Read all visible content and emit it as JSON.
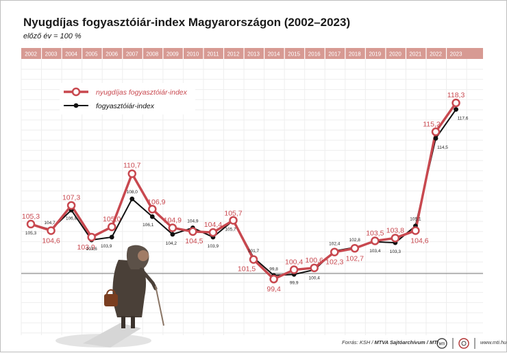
{
  "title": "Nyugdíjas fogyasztóiár-index Magyarországon (2002–2023)",
  "subtitle": "előző év = 100 %",
  "colors": {
    "pensioner": "#c8484f",
    "cpi": "#111111",
    "year_band": "#d79a93",
    "grid": "#eeeeee",
    "baseline": "#8c8c8c"
  },
  "footer": {
    "source": "Forrás: KSH / ",
    "org": "MTVA Sajtóarchívum / MTI",
    "web": "www.mti.hu"
  },
  "chart_data": {
    "type": "line",
    "title": "Nyugdíjas fogyasztóiár-index Magyarországon (2002–2023)",
    "subtitle": "előző év = 100 %",
    "x": [
      "2002",
      "2003",
      "2004",
      "2005",
      "2006",
      "2007",
      "2008",
      "2009",
      "2010",
      "2011",
      "2012",
      "2013",
      "2014",
      "2015",
      "2016",
      "2017",
      "2018",
      "2019",
      "2020",
      "2021",
      "2022",
      "2023"
    ],
    "series": [
      {
        "name": "nyugdíjas fogyasztóiár-index",
        "color": "#c8484f",
        "values": [
          105.3,
          104.6,
          107.3,
          103.9,
          105.0,
          110.7,
          106.9,
          104.9,
          104.5,
          104.4,
          105.7,
          101.5,
          99.4,
          100.4,
          100.6,
          102.3,
          102.7,
          103.5,
          103.8,
          104.6,
          115.2,
          118.3
        ],
        "labels": [
          "105,3",
          "104,6",
          "107,3",
          "103,9",
          "105,0",
          "110,7",
          "106,9",
          "104,9",
          "104,5",
          "104,4",
          "105,7",
          "101,5",
          "99,4",
          "100,4",
          "100,6",
          "102,3",
          "102,7",
          "103,5",
          "103,8",
          "104,6",
          "115,2",
          "118,3"
        ]
      },
      {
        "name": "fogyasztóiár-index",
        "color": "#111111",
        "values": [
          105.3,
          104.7,
          106.8,
          103.6,
          103.9,
          108.0,
          106.1,
          104.2,
          104.9,
          103.9,
          105.7,
          101.7,
          99.8,
          99.9,
          100.4,
          102.4,
          102.8,
          103.4,
          103.3,
          105.1,
          114.5,
          117.6
        ],
        "labels": [
          "105,3",
          "104,7",
          "106,8",
          "103,6",
          "103,9",
          "108,0",
          "106,1",
          "104,2",
          "104,9",
          "103,9",
          "105,7",
          "101,7",
          "99,8",
          "99,9",
          "100,4",
          "102,4",
          "102,8",
          "103,4",
          "103,3",
          "105,1",
          "114,5",
          "117,6"
        ]
      }
    ],
    "ylim": [
      95,
      120
    ],
    "baseline": 100,
    "grid": true,
    "legend_position": "top-left"
  }
}
